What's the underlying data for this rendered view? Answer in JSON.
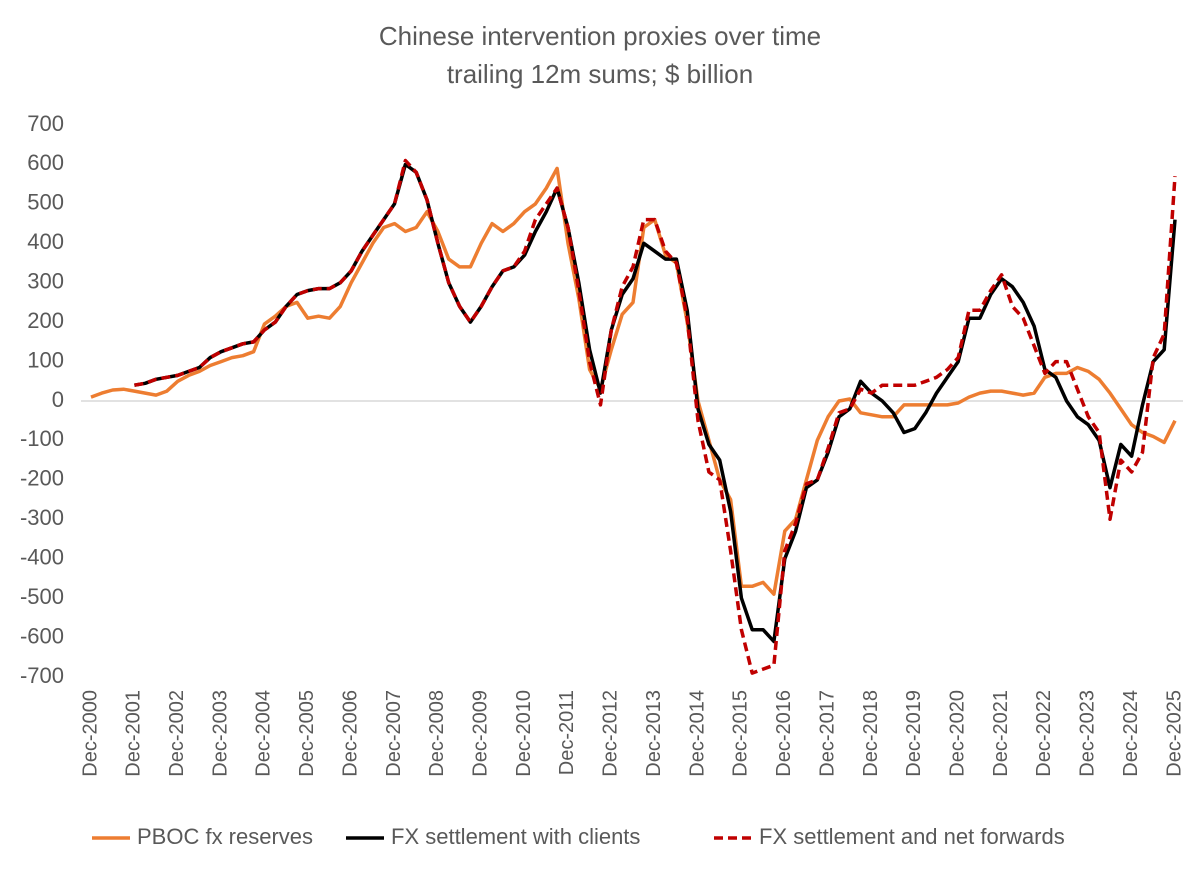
{
  "chart_data": {
    "type": "line",
    "title": "Chinese intervention proxies over time",
    "subtitle": "trailing 12m sums; $ billion",
    "categories": [
      "Dec-2000",
      null,
      null,
      null,
      "Dec-2001",
      null,
      null,
      null,
      "Dec-2002",
      null,
      null,
      null,
      "Dec-2003",
      null,
      null,
      null,
      "Dec-2004",
      null,
      null,
      null,
      "Dec-2005",
      null,
      null,
      null,
      "Dec-2006",
      null,
      null,
      null,
      "Dec-2007",
      null,
      null,
      null,
      "Dec-2008",
      null,
      null,
      null,
      "Dec-2009",
      null,
      null,
      null,
      "Dec-2010",
      null,
      null,
      null,
      "Dec-2011",
      null,
      null,
      null,
      "Dec-2012",
      null,
      null,
      null,
      "Dec-2013",
      null,
      null,
      null,
      "Dec-2014",
      null,
      null,
      null,
      "Dec-2015",
      null,
      null,
      null,
      "Dec-2016",
      null,
      null,
      null,
      "Dec-2017",
      null,
      null,
      null,
      "Dec-2018",
      null,
      null,
      null,
      "Dec-2019",
      null,
      null,
      null,
      "Dec-2020",
      null,
      null,
      null,
      "Dec-2021",
      null,
      null,
      null,
      "Dec-2022",
      null,
      null,
      null,
      "Dec-2023",
      null,
      null,
      null,
      "Dec-2024",
      null,
      null,
      null,
      "Dec-2025"
    ],
    "series": [
      {
        "name": "PBOC fx reserves",
        "color": "#ED7D31",
        "dash": false,
        "values": [
          10,
          20,
          28,
          30,
          25,
          20,
          15,
          25,
          50,
          65,
          75,
          90,
          100,
          110,
          115,
          125,
          195,
          215,
          240,
          250,
          210,
          215,
          210,
          240,
          300,
          350,
          400,
          440,
          450,
          430,
          440,
          480,
          430,
          360,
          340,
          340,
          400,
          450,
          430,
          450,
          480,
          500,
          540,
          590,
          400,
          260,
          80,
          30,
          130,
          220,
          250,
          440,
          460,
          370,
          350,
          200,
          0,
          -100,
          -200,
          -250,
          -470,
          -470,
          -460,
          -490,
          -330,
          -300,
          -200,
          -100,
          -40,
          0,
          5,
          -30,
          -35,
          -40,
          -40,
          -10,
          -10,
          -10,
          -10,
          -10,
          -5,
          10,
          20,
          25,
          25,
          20,
          15,
          20,
          60,
          70,
          70,
          85,
          75,
          55,
          20,
          -20,
          -60,
          -80,
          -90,
          -105,
          -50
        ]
      },
      {
        "name": "FX settlement with clients",
        "color": "#000000",
        "dash": false,
        "values": [
          null,
          null,
          null,
          null,
          40,
          45,
          55,
          60,
          65,
          75,
          85,
          110,
          125,
          135,
          145,
          150,
          180,
          200,
          240,
          270,
          280,
          285,
          285,
          300,
          330,
          380,
          420,
          460,
          500,
          600,
          580,
          510,
          400,
          300,
          240,
          200,
          240,
          290,
          330,
          340,
          370,
          430,
          480,
          540,
          440,
          300,
          130,
          20,
          180,
          270,
          310,
          400,
          380,
          360,
          360,
          230,
          -20,
          -110,
          -150,
          -280,
          -500,
          -580,
          -580,
          -610,
          -400,
          -330,
          -220,
          -200,
          -130,
          -40,
          -20,
          50,
          20,
          0,
          -30,
          -80,
          -70,
          -30,
          20,
          60,
          100,
          210,
          210,
          270,
          310,
          290,
          250,
          190,
          80,
          60,
          0,
          -40,
          -60,
          -100,
          -220,
          -110,
          -140,
          -10,
          100,
          130,
          460
        ]
      },
      {
        "name": "FX settlement and net forwards",
        "color": "#C00000",
        "dash": true,
        "values": [
          null,
          null,
          null,
          null,
          40,
          45,
          55,
          60,
          65,
          75,
          85,
          110,
          125,
          135,
          145,
          150,
          180,
          200,
          240,
          270,
          280,
          285,
          285,
          300,
          330,
          380,
          420,
          460,
          500,
          610,
          580,
          510,
          400,
          300,
          240,
          200,
          240,
          290,
          330,
          340,
          380,
          460,
          500,
          540,
          440,
          280,
          100,
          -10,
          180,
          290,
          340,
          460,
          460,
          380,
          350,
          210,
          -50,
          -180,
          -200,
          -380,
          -580,
          -690,
          -680,
          -670,
          -380,
          -310,
          -210,
          -200,
          -120,
          -30,
          -20,
          30,
          20,
          40,
          40,
          40,
          40,
          50,
          60,
          80,
          110,
          230,
          230,
          280,
          320,
          240,
          210,
          140,
          70,
          100,
          100,
          30,
          -40,
          -80,
          -300,
          -150,
          -180,
          -130,
          110,
          170,
          570
        ]
      }
    ],
    "ylim": [
      -700,
      700
    ],
    "yticks": [
      -700,
      -600,
      -500,
      -400,
      -300,
      -200,
      -100,
      0,
      100,
      200,
      300,
      400,
      500,
      600,
      700
    ],
    "grid": false,
    "legend": "bottom"
  }
}
